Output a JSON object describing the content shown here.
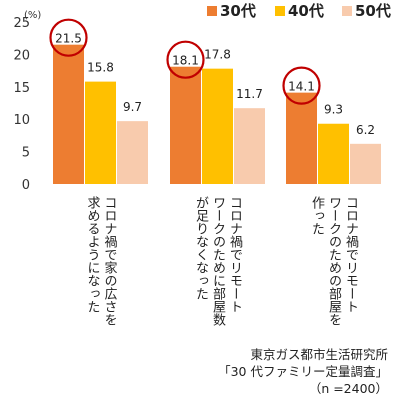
{
  "chart_data": {
    "type": "bar",
    "title": "",
    "xlabel": "",
    "ylabel": "",
    "unit": "(%)",
    "ylim": [
      0,
      25
    ],
    "yticks": [
      0,
      5,
      10,
      15,
      20,
      25
    ],
    "categories": [
      [
        "コロナ禍で家の広さを",
        "求めるようになった"
      ],
      [
        "コロナ禍でリモート",
        "ワークのために部屋数",
        "が足りなくなった"
      ],
      [
        "コロナ禍でリモート",
        "ワークのための部屋を",
        "作った"
      ]
    ],
    "series": [
      {
        "name": "30代",
        "color": "#ED7D31",
        "values": [
          21.5,
          18.1,
          14.1
        ]
      },
      {
        "name": "40代",
        "color": "#FFC000",
        "values": [
          15.8,
          17.8,
          9.3
        ]
      },
      {
        "name": "50代",
        "color": "#F8CBAD",
        "values": [
          9.7,
          11.7,
          6.2
        ]
      }
    ],
    "value_labels": [
      [
        "21.5",
        "18.1",
        "14.1"
      ],
      [
        "15.8",
        "17.8",
        "9.3"
      ],
      [
        "9.7",
        "11.7",
        "6.2"
      ]
    ],
    "highlighted_series": "30代",
    "highlight_color": "#C00000",
    "grid": false,
    "legend_position": "top-right"
  },
  "source": {
    "line1": "東京ガス都市生活研究所",
    "line2": "「30 代ファミリー定量調査」",
    "line3": "（n =2400）"
  }
}
